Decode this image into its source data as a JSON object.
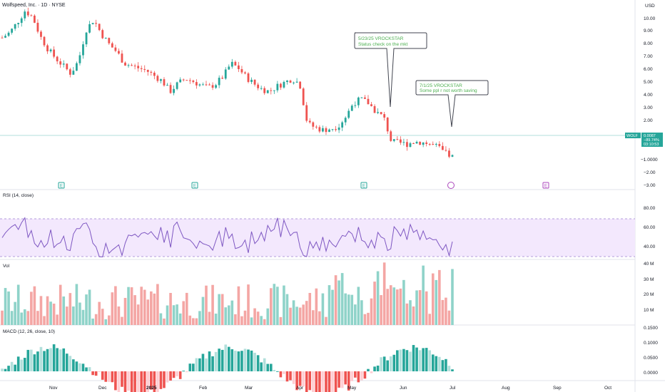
{
  "title": "Wolfspeed, Inc. · 1D · NYSE",
  "currency": "USD",
  "price_axis_labels": [
    "10.00",
    "9.00",
    "8.00",
    "7.00",
    "6.00",
    "5.00",
    "4.00",
    "3.00",
    "2.00",
    "−1.0000",
    "−2.00",
    "−3.00"
  ],
  "last_price": {
    "ticker": "WOLF",
    "price": "0.0087",
    "change": "−89.74%",
    "countdown": "03:10:53"
  },
  "annotations": [
    {
      "line1": "5/23/25 VROCKSTAR",
      "line2": "Status check on the mkt",
      "pin_price": 3.0
    },
    {
      "line1": "7/1/25 VROCKSTAR",
      "line2": "Some ppl r not worth saving",
      "pin_price": 1.5
    }
  ],
  "earnings_markers": [
    "E",
    "E",
    "E",
    "E",
    "E"
  ],
  "rsi": {
    "label": "RSI (14, close)",
    "axis_labels": [
      "80.00",
      "60.00",
      "40.00"
    ],
    "band": [
      30,
      70
    ]
  },
  "volume": {
    "label": "Vol",
    "axis_labels": [
      "40 M",
      "30 M",
      "20 M",
      "10 M"
    ]
  },
  "macd": {
    "label": "MACD (12, 26, close, 10)",
    "axis_labels": [
      "0.1500",
      "0.1000",
      "0.0500",
      "0.0000"
    ]
  },
  "time_axis": [
    "Nov",
    "Dec",
    "2025",
    "Feb",
    "Mar",
    "Apr",
    "May",
    "Jun",
    "Jul",
    "Aug",
    "Sep",
    "Oct"
  ],
  "colors": {
    "up": "#26a69a",
    "down": "#ef5350",
    "rsi_line": "#7e57c2",
    "rsi_band": "#f3e8fd",
    "annotation": "#4caf50"
  },
  "chart_data": {
    "type": "candlestick",
    "x": [
      "Oct 2024",
      "Nov",
      "Dec",
      "Jan 2025",
      "Feb",
      "Mar",
      "Apr",
      "May",
      "Jun",
      "Jul"
    ],
    "close_path": [
      9.4,
      9.8,
      10.6,
      11.5,
      11.0,
      9.5,
      8.5,
      7.8,
      7.2,
      6.6,
      7.6,
      10.0,
      10.8,
      9.7,
      8.9,
      8.3,
      7.4,
      7.2,
      7.0,
      6.8,
      6.4,
      6.0,
      5.2,
      5.8,
      6.2,
      6.0,
      5.7,
      5.5,
      5.8,
      6.4,
      7.4,
      7.0,
      6.3,
      5.8,
      5.4,
      5.2,
      5.6,
      5.9,
      6.2,
      5.8,
      2.7,
      2.4,
      2.2,
      2.3,
      2.5,
      3.2,
      4.3,
      4.6,
      4.3,
      3.6,
      3.2,
      1.3,
      1.2,
      1.1,
      1.3,
      1.25,
      1.1,
      0.9,
      0.4,
      0.1
    ],
    "ylim": [
      -3,
      11
    ]
  }
}
